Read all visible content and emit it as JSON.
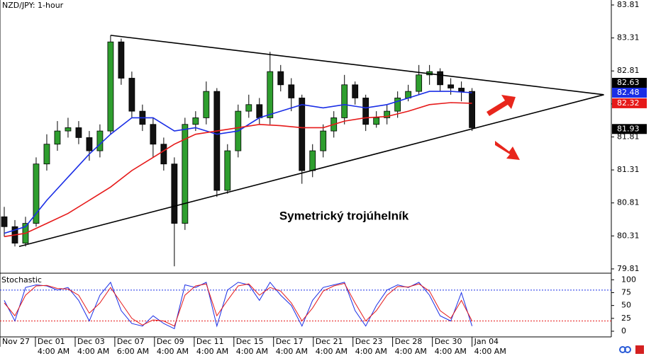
{
  "chart_data": [
    {
      "type": "candlestick",
      "title": "NZD/JPY: 1-hour",
      "annotation": "Symetrický trojúhelník",
      "x": [
        0,
        1,
        2,
        3,
        4,
        5,
        6,
        7,
        8,
        9,
        10,
        11,
        12,
        13,
        14,
        15,
        16,
        17,
        18,
        19,
        20,
        21,
        22,
        23,
        24,
        25,
        26,
        27,
        28,
        29,
        30,
        31,
        32,
        33,
        34,
        35,
        36,
        37,
        38,
        39,
        40,
        41,
        42,
        43,
        44
      ],
      "open": [
        80.6,
        80.45,
        80.2,
        80.5,
        81.4,
        81.7,
        81.9,
        81.95,
        81.8,
        81.6,
        81.9,
        83.25,
        82.7,
        82.2,
        82.0,
        81.7,
        81.4,
        80.5,
        82.0,
        82.1,
        82.5,
        81.0,
        81.6,
        82.2,
        82.3,
        82.1,
        82.8,
        82.6,
        82.4,
        81.3,
        81.6,
        81.9,
        82.1,
        82.6,
        82.4,
        82.0,
        82.1,
        82.2,
        82.4,
        82.5,
        82.75,
        82.8,
        82.6,
        82.55,
        82.5
      ],
      "high": [
        80.75,
        80.55,
        80.6,
        81.5,
        81.85,
        82.05,
        82.1,
        82.05,
        81.9,
        82.0,
        83.35,
        83.3,
        82.8,
        82.3,
        82.1,
        81.8,
        81.5,
        82.1,
        82.2,
        82.65,
        82.55,
        81.7,
        82.3,
        82.45,
        82.4,
        83.1,
        82.9,
        82.7,
        82.45,
        81.7,
        82.0,
        82.2,
        82.75,
        82.65,
        82.45,
        82.2,
        82.3,
        82.5,
        82.6,
        82.9,
        82.9,
        82.85,
        82.7,
        82.65,
        82.55
      ],
      "low": [
        80.3,
        80.15,
        80.15,
        80.45,
        81.3,
        81.6,
        81.8,
        81.7,
        81.45,
        81.5,
        81.85,
        82.6,
        82.1,
        81.9,
        81.5,
        81.3,
        79.85,
        80.4,
        81.9,
        82.0,
        80.9,
        80.95,
        81.5,
        82.1,
        82.0,
        82.0,
        82.5,
        82.2,
        81.1,
        81.2,
        81.5,
        81.8,
        82.0,
        82.3,
        81.9,
        81.95,
        82.0,
        82.1,
        82.35,
        82.45,
        82.6,
        82.5,
        82.45,
        82.35,
        81.9
      ],
      "close": [
        80.45,
        80.2,
        80.5,
        81.4,
        81.7,
        81.9,
        81.95,
        81.8,
        81.6,
        81.9,
        83.25,
        82.7,
        82.2,
        82.0,
        81.7,
        81.4,
        80.5,
        82.0,
        82.1,
        82.5,
        81.0,
        81.6,
        82.2,
        82.3,
        82.1,
        82.8,
        82.6,
        82.4,
        81.3,
        81.6,
        81.9,
        82.1,
        82.6,
        82.4,
        82.0,
        82.1,
        82.2,
        82.4,
        82.5,
        82.75,
        82.8,
        82.6,
        82.55,
        82.5,
        81.95
      ],
      "up_color": "#2e9e2e",
      "down_color": "#111111",
      "series": [
        {
          "color": "#1a2ee6",
          "x": [
            0,
            2,
            4,
            6,
            8,
            10,
            12,
            14,
            16,
            18,
            20,
            22,
            24,
            26,
            28,
            30,
            32,
            34,
            36,
            38,
            40,
            42,
            44
          ],
          "values": [
            80.35,
            80.45,
            80.85,
            81.2,
            81.55,
            81.85,
            82.1,
            82.1,
            81.9,
            81.95,
            81.85,
            81.9,
            82.1,
            82.2,
            82.3,
            82.25,
            82.3,
            82.25,
            82.3,
            82.4,
            82.5,
            82.5,
            82.48
          ]
        },
        {
          "color": "#e61a1a",
          "x": [
            0,
            2,
            4,
            6,
            8,
            10,
            12,
            14,
            16,
            18,
            20,
            22,
            24,
            26,
            28,
            30,
            32,
            34,
            36,
            38,
            40,
            42,
            44
          ],
          "values": [
            80.3,
            80.35,
            80.5,
            80.65,
            80.85,
            81.05,
            81.3,
            81.5,
            81.7,
            81.85,
            81.9,
            81.95,
            82.0,
            81.98,
            81.95,
            81.95,
            82.05,
            82.1,
            82.12,
            82.2,
            82.3,
            82.33,
            82.32
          ]
        }
      ],
      "trendlines": [
        {
          "x": [
            10,
            56.4
          ],
          "y": [
            83.35,
            82.45
          ]
        },
        {
          "x": [
            1.4,
            56.4
          ],
          "y": [
            80.15,
            82.45
          ]
        }
      ],
      "price_badges": [
        {
          "value": 82.63,
          "color": "#000000"
        },
        {
          "value": 82.48,
          "color": "#1a2ee6"
        },
        {
          "value": 82.32,
          "color": "#e61a1a"
        },
        {
          "value": 81.93,
          "color": "#000000"
        }
      ],
      "xlim": [
        -0.4,
        57.1
      ],
      "ylim": [
        79.745,
        83.885
      ],
      "yticks": [
        83.81,
        83.31,
        82.81,
        82.31,
        81.81,
        81.31,
        80.81,
        80.31,
        79.81
      ]
    },
    {
      "type": "line",
      "title": "Stochastic",
      "x": [
        0,
        1,
        2,
        3,
        4,
        5,
        6,
        7,
        8,
        9,
        10,
        11,
        12,
        13,
        14,
        15,
        16,
        17,
        18,
        19,
        20,
        21,
        22,
        23,
        24,
        25,
        26,
        27,
        28,
        29,
        30,
        31,
        32,
        33,
        34,
        35,
        36,
        37,
        38,
        39,
        40,
        41,
        42,
        43,
        44
      ],
      "series": [
        {
          "color": "#1a2ee6",
          "values": [
            60,
            20,
            85,
            90,
            88,
            80,
            85,
            60,
            20,
            70,
            95,
            40,
            15,
            10,
            30,
            15,
            5,
            90,
            85,
            95,
            10,
            80,
            95,
            90,
            60,
            95,
            70,
            50,
            10,
            60,
            85,
            90,
            95,
            40,
            10,
            50,
            80,
            90,
            85,
            95,
            70,
            30,
            20,
            75,
            10
          ]
        },
        {
          "color": "#e61a1a",
          "values": [
            55,
            30,
            70,
            88,
            89,
            83,
            82,
            70,
            35,
            55,
            85,
            55,
            25,
            12,
            22,
            20,
            10,
            70,
            88,
            92,
            30,
            60,
            88,
            92,
            70,
            85,
            78,
            55,
            20,
            45,
            78,
            88,
            93,
            55,
            20,
            40,
            70,
            87,
            86,
            92,
            78,
            40,
            25,
            60,
            20
          ]
        }
      ],
      "levels": [
        {
          "value": 80,
          "color": "#1a2ee6"
        },
        {
          "value": 20,
          "color": "#e61a1a"
        }
      ],
      "xlim": [
        -0.4,
        57.1
      ],
      "ylim": [
        -11,
        110
      ],
      "yticks": [
        100,
        75,
        50,
        25,
        0
      ],
      "xticks": [
        {
          "value": -0.4,
          "label": "Nov 27"
        },
        {
          "value": 2.93,
          "label": "Dec 01"
        },
        {
          "value": 6.67,
          "label": "Dec 03"
        },
        {
          "value": 10.4,
          "label": "Dec 07"
        },
        {
          "value": 14.13,
          "label": "Dec 09"
        },
        {
          "value": 17.87,
          "label": "Dec 11"
        },
        {
          "value": 21.6,
          "label": "Dec 15"
        },
        {
          "value": 25.33,
          "label": "Dec 17"
        },
        {
          "value": 29.07,
          "label": "Dec 21"
        },
        {
          "value": 32.8,
          "label": "Dec 23"
        },
        {
          "value": 36.53,
          "label": "Dec 28"
        },
        {
          "value": 40.27,
          "label": "Dec 30"
        },
        {
          "value": 44,
          "label": "Jan 04"
        }
      ],
      "xtick_times": [
        null,
        "4:00 AM",
        "4:00 AM",
        "6:00 AM",
        "4:00 AM",
        "4:00 AM",
        "4:00 AM",
        "4:00 AM",
        "4:00 AM",
        "4:00 AM",
        "4:00 AM",
        "4:00 AM",
        "4:00 AM"
      ]
    }
  ]
}
